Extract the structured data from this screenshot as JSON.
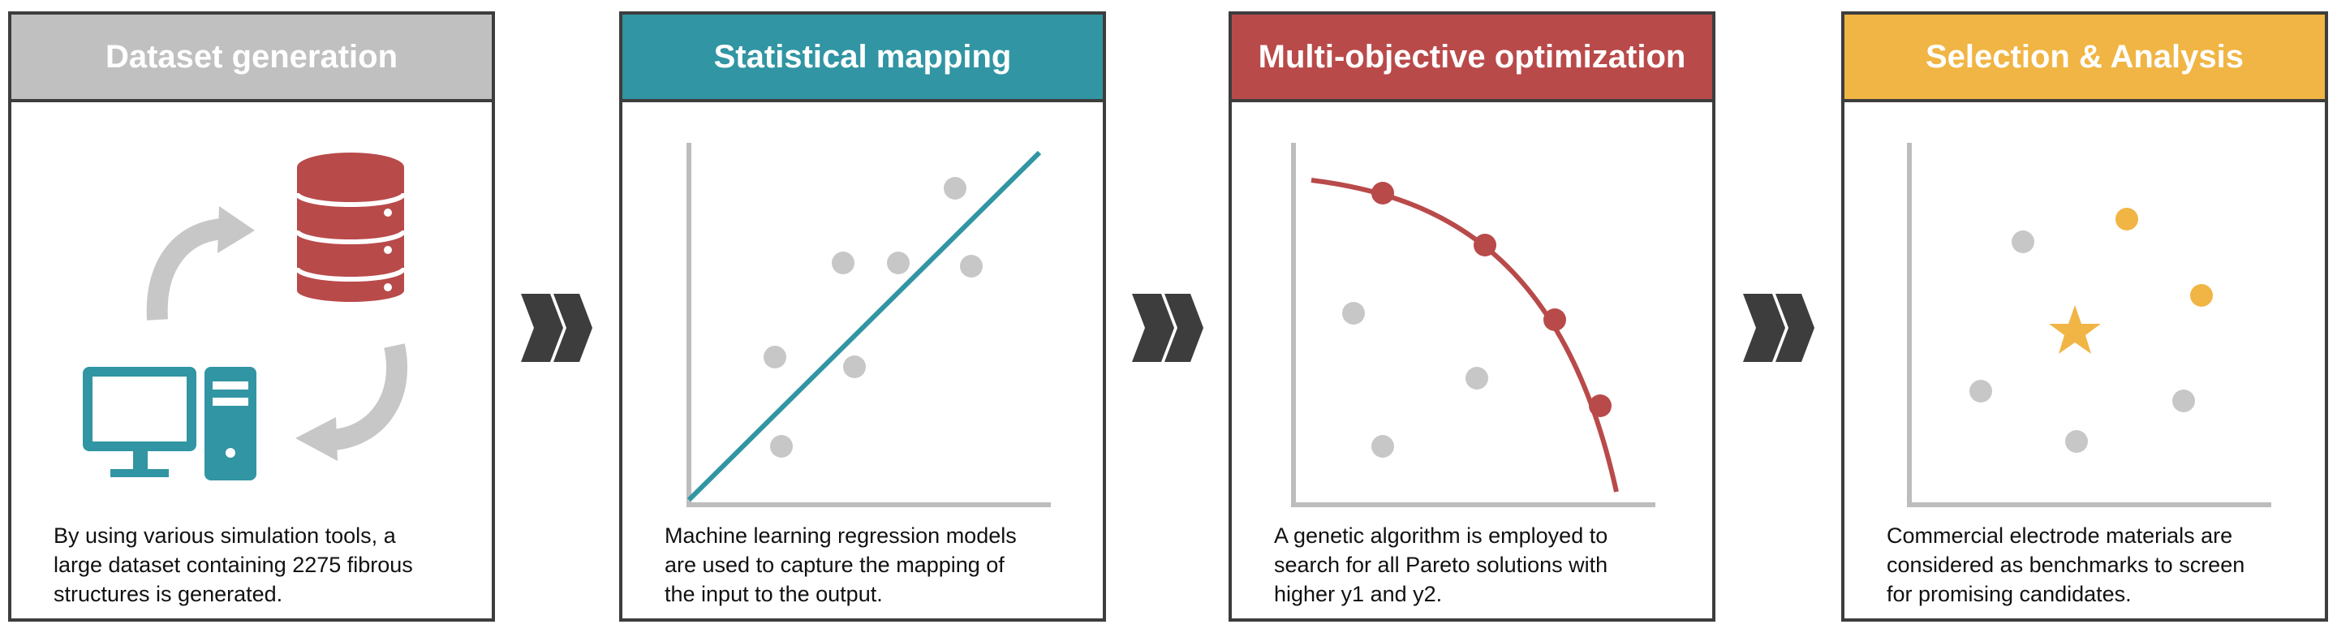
{
  "colors": {
    "gray_header": "#c0c0c0",
    "teal": "#3195a3",
    "red": "#b94a4a",
    "yellow": "#f0b544",
    "dot_gray": "#c7c7c7",
    "axis_gray": "#bdbdbd",
    "dark": "#3d3d3d"
  },
  "panels": [
    {
      "title": "Dataset generation",
      "text_lines": [
        "By using various simulation tools, a",
        "large dataset containing 2275 fibrous",
        "structures is generated."
      ],
      "icons": [
        "database-icon",
        "computer-icon",
        "cycle-arrows-icon"
      ]
    },
    {
      "title": "Statistical mapping",
      "text_lines": [
        "Machine learning regression models",
        "are used to capture the mapping of",
        "the input to the output."
      ]
    },
    {
      "title": "Multi-objective optimization",
      "text_lines": [
        "A genetic algorithm is employed to",
        "search for all Pareto solutions with",
        "higher y1 and y2."
      ]
    },
    {
      "title": "Selection & Analysis",
      "text_lines": [
        "Commercial electrode materials are",
        "considered as benchmarks to screen",
        "for promising candidates."
      ]
    }
  ],
  "connectors": [
    "double-chevron-icon",
    "double-chevron-icon",
    "double-chevron-icon"
  ]
}
